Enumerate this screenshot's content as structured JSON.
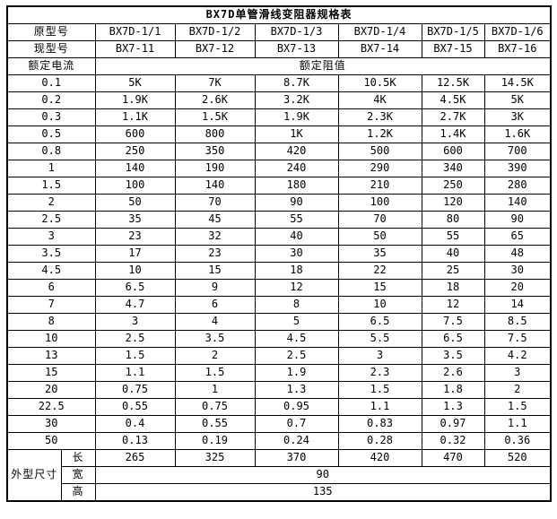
{
  "title": "BX7D单管滑线变阻器规格表",
  "colors": {
    "border": "#000000",
    "background": "#ffffff",
    "text": "#000000"
  },
  "header": {
    "original_model_label": "原型号",
    "original_models": [
      "BX7D-1/1",
      "BX7D-1/2",
      "BX7D-1/3",
      "BX7D-1/4",
      "BX7D-1/5",
      "BX7D-1/6"
    ],
    "current_model_label": "现型号",
    "current_models": [
      "BX7-11",
      "BX7-12",
      "BX7-13",
      "BX7-14",
      "BX7-15",
      "BX7-16"
    ],
    "rated_current_label": "额定电流",
    "rated_resistance_label": "额定阻值"
  },
  "rows": [
    {
      "current": "0.1",
      "values": [
        "5K",
        "7K",
        "8.7K",
        "10.5K",
        "12.5K",
        "14.5K"
      ]
    },
    {
      "current": "0.2",
      "values": [
        "1.9K",
        "2.6K",
        "3.2K",
        "4K",
        "4.5K",
        "5K"
      ]
    },
    {
      "current": "0.3",
      "values": [
        "1.1K",
        "1.5K",
        "1.9K",
        "2.3K",
        "2.7K",
        "3K"
      ]
    },
    {
      "current": "0.5",
      "values": [
        "600",
        "800",
        "1K",
        "1.2K",
        "1.4K",
        "1.6K"
      ]
    },
    {
      "current": "0.8",
      "values": [
        "250",
        "350",
        "420",
        "500",
        "600",
        "700"
      ]
    },
    {
      "current": "1",
      "values": [
        "140",
        "190",
        "240",
        "290",
        "340",
        "390"
      ]
    },
    {
      "current": "1.5",
      "values": [
        "100",
        "140",
        "180",
        "210",
        "250",
        "280"
      ]
    },
    {
      "current": "2",
      "values": [
        "50",
        "70",
        "90",
        "100",
        "120",
        "140"
      ]
    },
    {
      "current": "2.5",
      "values": [
        "35",
        "45",
        "55",
        "70",
        "80",
        "90"
      ]
    },
    {
      "current": "3",
      "values": [
        "23",
        "32",
        "40",
        "50",
        "55",
        "65"
      ]
    },
    {
      "current": "3.5",
      "values": [
        "17",
        "23",
        "30",
        "35",
        "40",
        "48"
      ]
    },
    {
      "current": "4.5",
      "values": [
        "10",
        "15",
        "18",
        "22",
        "25",
        "30"
      ]
    },
    {
      "current": "6",
      "values": [
        "6.5",
        "9",
        "12",
        "15",
        "18",
        "20"
      ]
    },
    {
      "current": "7",
      "values": [
        "4.7",
        "6",
        "8",
        "10",
        "12",
        "14"
      ]
    },
    {
      "current": "8",
      "values": [
        "3",
        "4",
        "5",
        "6.5",
        "7.5",
        "8.5"
      ]
    },
    {
      "current": "10",
      "values": [
        "2.5",
        "3.5",
        "4.5",
        "5.5",
        "6.5",
        "7.5"
      ]
    },
    {
      "current": "13",
      "values": [
        "1.5",
        "2",
        "2.5",
        "3",
        "3.5",
        "4.2"
      ]
    },
    {
      "current": "15",
      "values": [
        "1.1",
        "1.5",
        "1.9",
        "2.3",
        "2.6",
        "3"
      ]
    },
    {
      "current": "20",
      "values": [
        "0.75",
        "1",
        "1.3",
        "1.5",
        "1.8",
        "2"
      ]
    },
    {
      "current": "22.5",
      "values": [
        "0.55",
        "0.75",
        "0.95",
        "1.1",
        "1.3",
        "1.5"
      ]
    },
    {
      "current": "30",
      "values": [
        "0.4",
        "0.55",
        "0.7",
        "0.83",
        "0.97",
        "1.1"
      ]
    },
    {
      "current": "50",
      "values": [
        "0.13",
        "0.19",
        "0.24",
        "0.28",
        "0.32",
        "0.36"
      ]
    }
  ],
  "dimensions": {
    "label": "外型尺寸",
    "length_label": "长",
    "length_values": [
      "265",
      "325",
      "370",
      "420",
      "470",
      "520"
    ],
    "width_label": "宽",
    "width_value": "90",
    "height_label": "高",
    "height_value": "135"
  }
}
